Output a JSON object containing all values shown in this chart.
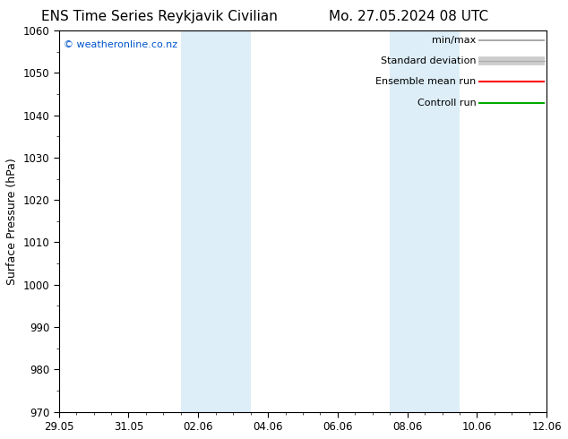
{
  "title_left": "ENS Time Series Reykjavik Civilian",
  "title_right": "Mo. 27.05.2024 08 UTC",
  "ylabel": "Surface Pressure (hPa)",
  "ylim": [
    970,
    1060
  ],
  "yticks": [
    970,
    980,
    990,
    1000,
    1010,
    1020,
    1030,
    1040,
    1050,
    1060
  ],
  "x_tick_labels": [
    "29.05",
    "31.05",
    "02.06",
    "04.06",
    "06.06",
    "08.06",
    "10.06",
    "12.06"
  ],
  "x_tick_positions": [
    0,
    2,
    4,
    6,
    8,
    10,
    12,
    14
  ],
  "xlim": [
    0,
    14
  ],
  "shade_bands": [
    {
      "x_start": 3.5,
      "x_end": 4.5
    },
    {
      "x_start": 4.5,
      "x_end": 5.5
    },
    {
      "x_start": 9.5,
      "x_end": 10.5
    },
    {
      "x_start": 10.5,
      "x_end": 11.5
    }
  ],
  "shade_color": "#ddeef8",
  "background_color": "#ffffff",
  "plot_bg_color": "#ffffff",
  "copyright_text": "© weatheronline.co.nz",
  "copyright_color": "#0055cc",
  "legend_items": [
    {
      "label": "min/max",
      "color": "#999999",
      "lw": 1.2,
      "band": false
    },
    {
      "label": "Standard deviation",
      "color": "#cccccc",
      "lw": 7,
      "band": true,
      "border_color": "#aaaaaa"
    },
    {
      "label": "Ensemble mean run",
      "color": "#ff0000",
      "lw": 1.5,
      "band": false
    },
    {
      "label": "Controll run",
      "color": "#00aa00",
      "lw": 1.5,
      "band": false
    }
  ],
  "title_fontsize": 11,
  "label_fontsize": 9,
  "tick_fontsize": 8.5,
  "copyright_fontsize": 8,
  "legend_fontsize": 8,
  "figsize": [
    6.34,
    4.9
  ],
  "dpi": 100
}
